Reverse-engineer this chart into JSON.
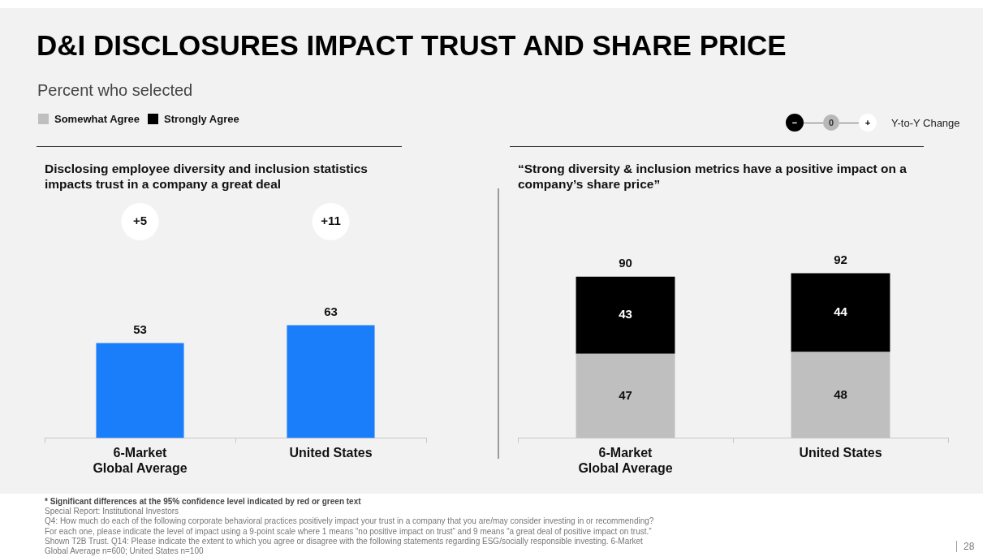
{
  "chart_data": [
    {
      "type": "other",
      "title": "D&I DISCLOSURES IMPACT TRUST AND SHARE PRICE",
      "subtitle": "Percent who selected",
      "legend_title": "Y-to-Y Change",
      "categories": [
        "−",
        "0",
        "+"
      ],
      "annotations": [
        "* Significant differences at the 95% confidence level indicated by red or green text",
        "Special Report: Institutional Investors",
        "Q4: How much do each of the following corporate behavioral practices positively impact your trust in a company that you are/may consider investing in or recommending?",
        "For each one, please indicate the level of impact using a 9-point scale where 1 means “no positive impact on trust” and 9 means “a great deal of positive impact on trust.”",
        "Shown T2B Trust. Q14: Please indicate the extent to which you agree or disagree with the following statements regarding ESG/socially responsible investing. 6-Market",
        "Global Average n=600; United States n=100",
        "28"
      ]
    },
    {
      "type": "bar",
      "title": "Disclosing employee diversity and inclusion statistics impacts trust in a company a great deal",
      "categories": [
        "6-Market Global Average",
        "United States"
      ],
      "values": [
        53,
        63
      ],
      "color": "#1a7efb",
      "data_labels": true,
      "annotations": [
        "+5",
        "+11"
      ]
    },
    {
      "type": "bar",
      "title": "“Strong diversity & inclusion metrics have a positive impact on a company’s share price”",
      "categories": [
        "6-Market Global Average",
        "United States"
      ],
      "stacked": true,
      "data_labels": true,
      "legend": "top left",
      "totals": [
        "90",
        "92"
      ],
      "series": [
        {
          "name": "Somewhat Agree",
          "color": "#bfbfbf",
          "values": [
            47,
            48
          ]
        },
        {
          "name": "Strongly Agree",
          "color": "#000000",
          "values": [
            43,
            44
          ]
        }
      ]
    }
  ]
}
